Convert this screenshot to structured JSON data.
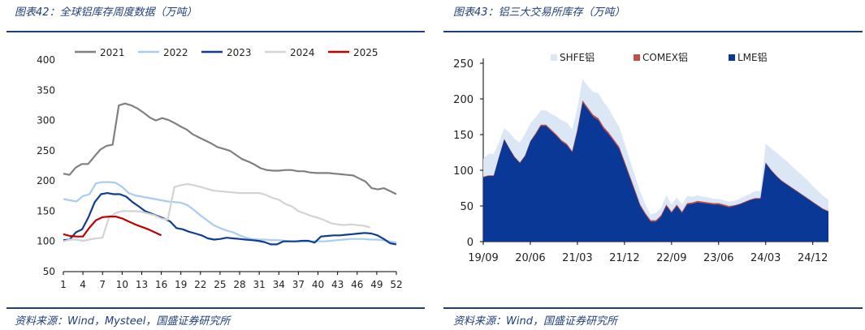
{
  "left": {
    "title": "图表42：全球铝库存周度数据（万吨）",
    "source": "资料来源：Wind，Mysteel，国盛证券研究所"
  },
  "right": {
    "title": "图表43：铝三大交易所库存（万吨）",
    "source": "资料来源：Wind，国盛证券研究所"
  },
  "colors": {
    "accent": "#1f3f7a",
    "s2021": "#808080",
    "s2022": "#a9cdf2",
    "s2023": "#0f3d91",
    "s2024": "#d3d3d3",
    "s2025": "#c00000",
    "shfe": "#dce7f5",
    "comex": "#c0504d",
    "lme": "#0a3896"
  },
  "chart_data": [
    {
      "type": "line",
      "title": "全球铝库存周度数据（万吨）",
      "xlabel": "",
      "ylabel": "万吨",
      "ylim": [
        50,
        400
      ],
      "yticks": [
        50,
        100,
        150,
        200,
        250,
        300,
        350,
        400
      ],
      "xticks": [
        1,
        4,
        7,
        10,
        13,
        16,
        19,
        22,
        25,
        28,
        31,
        34,
        37,
        40,
        43,
        46,
        49,
        52
      ],
      "xlim": [
        1,
        52
      ],
      "legend_position": "top",
      "series": [
        {
          "name": "2021",
          "color_key": "s2021",
          "start": 1,
          "values": [
            212,
            210,
            222,
            228,
            228,
            240,
            252,
            258,
            260,
            325,
            328,
            325,
            320,
            313,
            305,
            300,
            304,
            301,
            296,
            290,
            285,
            277,
            272,
            267,
            262,
            256,
            253,
            250,
            243,
            236,
            232,
            227,
            221,
            218,
            217,
            217,
            218,
            218,
            216,
            216,
            214,
            213,
            213,
            213,
            212,
            211,
            210,
            209,
            204,
            199,
            188,
            186,
            188,
            183,
            178
          ]
        },
        {
          "name": "2022",
          "color_key": "s2022",
          "start": 1,
          "values": [
            170,
            168,
            166,
            175,
            178,
            196,
            198,
            198,
            197,
            190,
            180,
            176,
            174,
            172,
            170,
            168,
            166,
            165,
            164,
            160,
            152,
            143,
            135,
            127,
            122,
            118,
            115,
            110,
            106,
            104,
            103,
            103,
            102,
            102,
            101,
            100,
            100,
            100,
            100,
            100,
            100,
            101,
            102,
            103,
            104,
            104,
            104,
            103,
            103,
            102,
            100,
            98
          ]
        },
        {
          "name": "2023",
          "color_key": "s2023",
          "start": 1,
          "values": [
            102,
            103,
            115,
            120,
            140,
            165,
            178,
            180,
            178,
            178,
            174,
            165,
            158,
            150,
            146,
            142,
            138,
            133,
            122,
            120,
            116,
            113,
            110,
            105,
            103,
            104,
            106,
            105,
            104,
            103,
            102,
            101,
            99,
            95,
            95,
            100,
            100,
            100,
            101,
            101,
            98,
            108,
            109,
            110,
            110,
            111,
            112,
            113,
            114,
            113,
            110,
            104,
            97,
            95
          ]
        },
        {
          "name": "2024",
          "color_key": "s2024",
          "start": 1,
          "values": [
            100,
            103,
            103,
            101,
            103,
            105,
            106,
            140,
            147,
            150,
            150,
            150,
            149,
            146,
            143,
            138,
            136,
            190,
            193,
            195,
            193,
            190,
            187,
            184,
            183,
            182,
            181,
            180,
            180,
            180,
            180,
            177,
            172,
            169,
            162,
            158,
            150,
            146,
            142,
            139,
            135,
            130,
            128,
            127,
            128,
            127,
            126,
            123
          ]
        },
        {
          "name": "2025",
          "color_key": "s2025",
          "start": 1,
          "values": [
            112,
            109,
            108,
            108,
            123,
            135,
            140,
            141,
            141,
            138,
            133,
            128,
            124,
            120,
            115,
            110
          ]
        }
      ]
    },
    {
      "type": "area",
      "stacked": true,
      "title": "铝三大交易所库存（万吨）",
      "xlabel": "",
      "ylabel": "万吨",
      "ylim": [
        0,
        250
      ],
      "yticks": [
        0,
        50,
        100,
        150,
        200,
        250
      ],
      "xticks": [
        "19/09",
        "20/06",
        "21/03",
        "21/12",
        "22/09",
        "23/06",
        "24/03",
        "24/12"
      ],
      "legend_position": "top",
      "x_months_from_2019_09": [
        0,
        1,
        2,
        3,
        4,
        5,
        6,
        7,
        8,
        9,
        10,
        11,
        12,
        13,
        14,
        15,
        16,
        17,
        18,
        19,
        20,
        21,
        22,
        23,
        24,
        25,
        26,
        27,
        28,
        29,
        30,
        31,
        32,
        33,
        34,
        35,
        36,
        37,
        38,
        39,
        40,
        41,
        42,
        43,
        44,
        45,
        46,
        47,
        48,
        49,
        50,
        51,
        52,
        53,
        54,
        55,
        56,
        57,
        58,
        59,
        60,
        61,
        62,
        63,
        64,
        65,
        66
      ],
      "series": [
        {
          "name": "LME铝",
          "color_key": "lme",
          "values": [
            90,
            92,
            92,
            118,
            143,
            130,
            118,
            110,
            120,
            140,
            150,
            162,
            162,
            155,
            148,
            140,
            135,
            125,
            155,
            195,
            185,
            175,
            170,
            158,
            150,
            140,
            130,
            110,
            90,
            70,
            50,
            38,
            28,
            28,
            35,
            50,
            40,
            50,
            40,
            52,
            53,
            55,
            54,
            53,
            52,
            52,
            50,
            48,
            50,
            52,
            55,
            58,
            60,
            60,
            110,
            100,
            92,
            85,
            80,
            75,
            70,
            65,
            60,
            55,
            50,
            45,
            42
          ]
        },
        {
          "name": "COMEX铝",
          "color_key": "comex",
          "values": [
            1,
            1,
            1,
            1,
            1,
            1,
            1,
            1,
            1,
            1,
            2,
            2,
            2,
            2,
            2,
            2,
            2,
            2,
            3,
            3,
            3,
            3,
            3,
            3,
            3,
            3,
            3,
            3,
            3,
            3,
            2,
            2,
            2,
            2,
            2,
            2,
            2,
            2,
            2,
            2,
            2,
            2,
            2,
            2,
            2,
            2,
            2,
            2,
            1,
            1,
            1,
            1,
            1,
            1,
            1,
            1,
            1,
            1,
            1,
            1,
            1,
            1,
            1,
            1,
            1,
            1,
            1
          ]
        },
        {
          "name": "SHFE铝",
          "color_key": "shfe",
          "values": [
            25,
            30,
            30,
            20,
            15,
            22,
            25,
            28,
            30,
            25,
            22,
            20,
            20,
            22,
            25,
            28,
            30,
            30,
            30,
            30,
            30,
            32,
            35,
            35,
            33,
            30,
            28,
            25,
            22,
            20,
            18,
            12,
            8,
            10,
            10,
            13,
            10,
            10,
            10,
            10,
            8,
            8,
            7,
            7,
            6,
            6,
            6,
            6,
            6,
            7,
            8,
            8,
            10,
            10,
            26,
            30,
            32,
            33,
            32,
            30,
            28,
            27,
            25,
            22,
            20,
            18,
            16
          ]
        }
      ]
    }
  ]
}
